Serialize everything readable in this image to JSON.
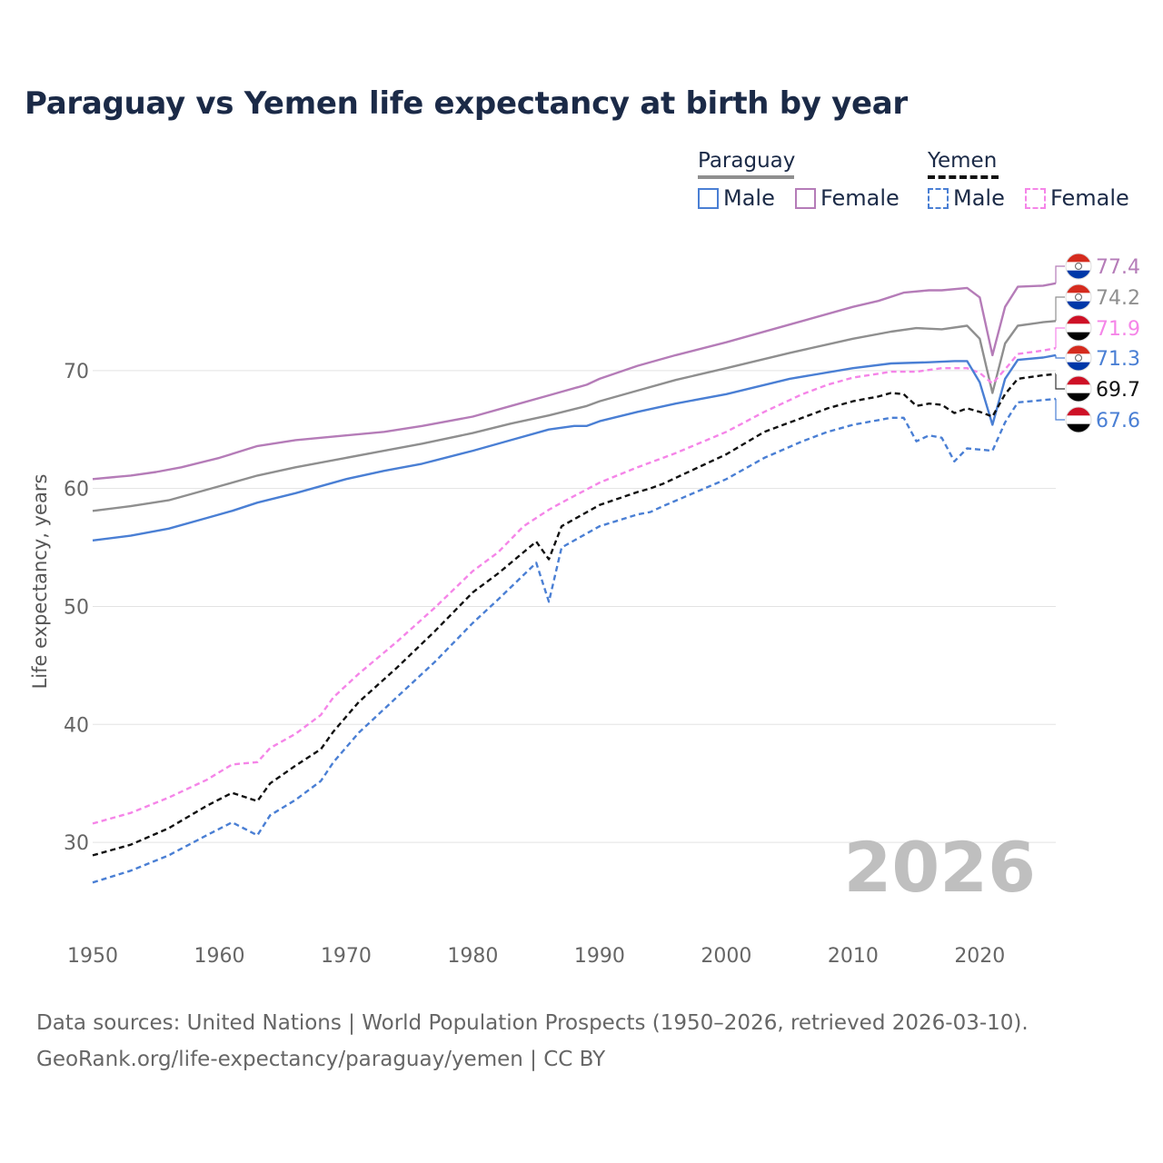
{
  "title": "Paraguay vs Yemen life expectancy at birth by year",
  "legend": {
    "groups": [
      {
        "name": "Paraguay",
        "color": "#8f8f8f",
        "dashed": false,
        "entries": [
          {
            "label": "Male",
            "color": "#4a7fd4"
          },
          {
            "label": "Female",
            "color": "#b57cb8"
          }
        ]
      },
      {
        "name": "Yemen",
        "color": "#111111",
        "dashed": true,
        "entries": [
          {
            "label": "Male",
            "color": "#4a7fd4"
          },
          {
            "label": "Female",
            "color": "#f585e8"
          }
        ]
      }
    ]
  },
  "current_year": "2026",
  "footer": {
    "line1": "Data sources: United Nations | World Population Prospects (1950–2026, retrieved 2026-03-10).",
    "line2": "GeoRank.org/life-expectancy/paraguay/yemen | CC BY"
  },
  "chart_data": {
    "type": "line",
    "title": "Paraguay vs Yemen life expectancy at birth by year",
    "xlabel": "",
    "ylabel": "Life expectancy, years",
    "xlim": [
      1950,
      2026
    ],
    "ylim": [
      23,
      80
    ],
    "x_ticks": [
      1950,
      1960,
      1970,
      1980,
      1990,
      2000,
      2010,
      2020
    ],
    "y_ticks": [
      30,
      40,
      50,
      60,
      70
    ],
    "grid": true,
    "series": [
      {
        "name": "Paraguay Female",
        "color": "#b57cb8",
        "dashed": false,
        "end_label": "77.4",
        "points": [
          [
            1950,
            60.8
          ],
          [
            1953,
            61.1
          ],
          [
            1955,
            61.4
          ],
          [
            1957,
            61.8
          ],
          [
            1960,
            62.6
          ],
          [
            1963,
            63.6
          ],
          [
            1966,
            64.1
          ],
          [
            1970,
            64.5
          ],
          [
            1973,
            64.8
          ],
          [
            1976,
            65.3
          ],
          [
            1980,
            66.1
          ],
          [
            1983,
            67.0
          ],
          [
            1986,
            67.9
          ],
          [
            1989,
            68.8
          ],
          [
            1990,
            69.3
          ],
          [
            1993,
            70.4
          ],
          [
            1996,
            71.3
          ],
          [
            2000,
            72.4
          ],
          [
            2005,
            73.9
          ],
          [
            2010,
            75.4
          ],
          [
            2012,
            75.9
          ],
          [
            2014,
            76.6
          ],
          [
            2016,
            76.8
          ],
          [
            2017,
            76.8
          ],
          [
            2019,
            77.0
          ],
          [
            2020,
            76.2
          ],
          [
            2021,
            71.3
          ],
          [
            2022,
            75.4
          ],
          [
            2023,
            77.1
          ],
          [
            2025,
            77.2
          ],
          [
            2026,
            77.4
          ]
        ]
      },
      {
        "name": "Paraguay Total",
        "color": "#8f8f8f",
        "dashed": false,
        "end_label": "74.2",
        "points": [
          [
            1950,
            58.1
          ],
          [
            1953,
            58.5
          ],
          [
            1956,
            59.0
          ],
          [
            1960,
            60.2
          ],
          [
            1963,
            61.1
          ],
          [
            1966,
            61.8
          ],
          [
            1970,
            62.6
          ],
          [
            1973,
            63.2
          ],
          [
            1976,
            63.8
          ],
          [
            1980,
            64.7
          ],
          [
            1983,
            65.5
          ],
          [
            1986,
            66.2
          ],
          [
            1989,
            67.0
          ],
          [
            1990,
            67.4
          ],
          [
            1993,
            68.3
          ],
          [
            1996,
            69.2
          ],
          [
            2000,
            70.2
          ],
          [
            2005,
            71.5
          ],
          [
            2010,
            72.7
          ],
          [
            2013,
            73.3
          ],
          [
            2015,
            73.6
          ],
          [
            2017,
            73.5
          ],
          [
            2019,
            73.8
          ],
          [
            2020,
            72.7
          ],
          [
            2021,
            68.1
          ],
          [
            2022,
            72.3
          ],
          [
            2023,
            73.8
          ],
          [
            2025,
            74.1
          ],
          [
            2026,
            74.2
          ]
        ]
      },
      {
        "name": "Yemen Female",
        "color": "#f585e8",
        "dashed": true,
        "end_label": "71.9",
        "points": [
          [
            1950,
            31.6
          ],
          [
            1953,
            32.5
          ],
          [
            1956,
            33.8
          ],
          [
            1959,
            35.3
          ],
          [
            1961,
            36.6
          ],
          [
            1963,
            36.8
          ],
          [
            1964,
            38.0
          ],
          [
            1966,
            39.2
          ],
          [
            1968,
            40.8
          ],
          [
            1969,
            42.3
          ],
          [
            1971,
            44.3
          ],
          [
            1974,
            47.0
          ],
          [
            1977,
            49.9
          ],
          [
            1980,
            53.0
          ],
          [
            1982,
            54.6
          ],
          [
            1984,
            56.8
          ],
          [
            1986,
            58.2
          ],
          [
            1987,
            58.8
          ],
          [
            1990,
            60.5
          ],
          [
            1993,
            61.8
          ],
          [
            1996,
            63.0
          ],
          [
            2000,
            64.8
          ],
          [
            2003,
            66.5
          ],
          [
            2006,
            68.0
          ],
          [
            2008,
            68.8
          ],
          [
            2010,
            69.4
          ],
          [
            2013,
            69.9
          ],
          [
            2015,
            69.9
          ],
          [
            2017,
            70.2
          ],
          [
            2019,
            70.2
          ],
          [
            2020,
            69.8
          ],
          [
            2021,
            68.9
          ],
          [
            2022,
            70.1
          ],
          [
            2023,
            71.4
          ],
          [
            2025,
            71.7
          ],
          [
            2026,
            71.9
          ]
        ]
      },
      {
        "name": "Paraguay Male",
        "color": "#4a7fd4",
        "dashed": false,
        "end_label": "71.3",
        "points": [
          [
            1950,
            55.6
          ],
          [
            1953,
            56.0
          ],
          [
            1956,
            56.6
          ],
          [
            1959,
            57.5
          ],
          [
            1961,
            58.1
          ],
          [
            1963,
            58.8
          ],
          [
            1966,
            59.6
          ],
          [
            1970,
            60.8
          ],
          [
            1973,
            61.5
          ],
          [
            1976,
            62.1
          ],
          [
            1980,
            63.2
          ],
          [
            1983,
            64.1
          ],
          [
            1986,
            65.0
          ],
          [
            1988,
            65.3
          ],
          [
            1989,
            65.3
          ],
          [
            1990,
            65.7
          ],
          [
            1993,
            66.5
          ],
          [
            1996,
            67.2
          ],
          [
            2000,
            68.0
          ],
          [
            2005,
            69.3
          ],
          [
            2010,
            70.2
          ],
          [
            2013,
            70.6
          ],
          [
            2016,
            70.7
          ],
          [
            2018,
            70.8
          ],
          [
            2019,
            70.8
          ],
          [
            2020,
            69.0
          ],
          [
            2021,
            65.4
          ],
          [
            2022,
            69.3
          ],
          [
            2023,
            70.9
          ],
          [
            2025,
            71.1
          ],
          [
            2026,
            71.3
          ]
        ]
      },
      {
        "name": "Yemen Total",
        "color": "#111111",
        "dashed": true,
        "end_label": "69.7",
        "points": [
          [
            1950,
            28.9
          ],
          [
            1953,
            29.8
          ],
          [
            1956,
            31.2
          ],
          [
            1959,
            33.1
          ],
          [
            1961,
            34.2
          ],
          [
            1963,
            33.5
          ],
          [
            1964,
            35.0
          ],
          [
            1966,
            36.5
          ],
          [
            1968,
            37.9
          ],
          [
            1969,
            39.4
          ],
          [
            1971,
            41.9
          ],
          [
            1974,
            44.8
          ],
          [
            1977,
            47.9
          ],
          [
            1980,
            51.2
          ],
          [
            1982,
            52.8
          ],
          [
            1985,
            55.5
          ],
          [
            1986,
            54.0
          ],
          [
            1987,
            56.8
          ],
          [
            1990,
            58.6
          ],
          [
            1993,
            59.7
          ],
          [
            1994,
            60.0
          ],
          [
            1995,
            60.4
          ],
          [
            2000,
            62.9
          ],
          [
            2003,
            64.8
          ],
          [
            2006,
            66.0
          ],
          [
            2008,
            66.8
          ],
          [
            2010,
            67.4
          ],
          [
            2012,
            67.8
          ],
          [
            2013,
            68.1
          ],
          [
            2014,
            68.0
          ],
          [
            2015,
            67.0
          ],
          [
            2016,
            67.2
          ],
          [
            2017,
            67.1
          ],
          [
            2018,
            66.4
          ],
          [
            2019,
            66.8
          ],
          [
            2020,
            66.5
          ],
          [
            2021,
            66.1
          ],
          [
            2022,
            68.0
          ],
          [
            2023,
            69.3
          ],
          [
            2025,
            69.6
          ],
          [
            2026,
            69.7
          ]
        ]
      },
      {
        "name": "Yemen Male",
        "color": "#4a7fd4",
        "dashed": true,
        "end_label": "67.6",
        "points": [
          [
            1950,
            26.6
          ],
          [
            1953,
            27.6
          ],
          [
            1956,
            28.9
          ],
          [
            1959,
            30.6
          ],
          [
            1961,
            31.7
          ],
          [
            1963,
            30.6
          ],
          [
            1964,
            32.3
          ],
          [
            1966,
            33.6
          ],
          [
            1968,
            35.2
          ],
          [
            1969,
            36.8
          ],
          [
            1971,
            39.3
          ],
          [
            1974,
            42.3
          ],
          [
            1977,
            45.3
          ],
          [
            1980,
            48.6
          ],
          [
            1982,
            50.6
          ],
          [
            1985,
            53.7
          ],
          [
            1986,
            50.4
          ],
          [
            1987,
            55.0
          ],
          [
            1990,
            56.8
          ],
          [
            1993,
            57.8
          ],
          [
            1994,
            58.0
          ],
          [
            1995,
            58.5
          ],
          [
            2000,
            60.8
          ],
          [
            2003,
            62.6
          ],
          [
            2006,
            64.0
          ],
          [
            2008,
            64.8
          ],
          [
            2010,
            65.4
          ],
          [
            2012,
            65.8
          ],
          [
            2013,
            66.0
          ],
          [
            2014,
            66.0
          ],
          [
            2015,
            64.0
          ],
          [
            2016,
            64.5
          ],
          [
            2017,
            64.3
          ],
          [
            2018,
            62.3
          ],
          [
            2019,
            63.4
          ],
          [
            2020,
            63.3
          ],
          [
            2021,
            63.2
          ],
          [
            2022,
            65.6
          ],
          [
            2023,
            67.3
          ],
          [
            2025,
            67.5
          ],
          [
            2026,
            67.6
          ]
        ]
      }
    ],
    "end_labels": [
      {
        "series": "Paraguay Female",
        "text": "77.4",
        "color": "#b57cb8",
        "flag": "paraguay"
      },
      {
        "series": "Paraguay Total",
        "text": "74.2",
        "color": "#8f8f8f",
        "flag": "paraguay"
      },
      {
        "series": "Yemen Female",
        "text": "71.9",
        "color": "#f585e8",
        "flag": "yemen"
      },
      {
        "series": "Paraguay Male",
        "text": "71.3",
        "color": "#4a7fd4",
        "flag": "paraguay"
      },
      {
        "series": "Yemen Total",
        "text": "69.7",
        "color": "#111111",
        "flag": "yemen"
      },
      {
        "series": "Yemen Male",
        "text": "67.6",
        "color": "#4a7fd4",
        "flag": "yemen"
      }
    ]
  }
}
